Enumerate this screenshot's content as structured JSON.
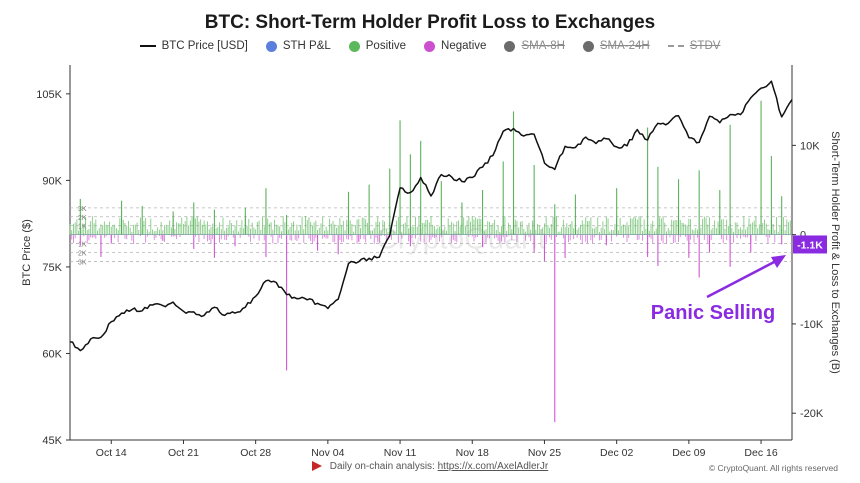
{
  "title": "BTC: Short-Term Holder Profit Loss to Exchanges",
  "legend": [
    {
      "label": "BTC Price [USD]",
      "kind": "line",
      "color": "#111111",
      "active": true
    },
    {
      "label": "STH P&L",
      "kind": "dot",
      "color": "#5b7fdc",
      "active": true
    },
    {
      "label": "Positive",
      "kind": "dot",
      "color": "#5cb85c",
      "active": true
    },
    {
      "label": "Negative",
      "kind": "dot",
      "color": "#cc4fd0",
      "active": true
    },
    {
      "label": "SMA-8H",
      "kind": "dot",
      "color": "#6b6b6b",
      "active": false
    },
    {
      "label": "SMA-24H",
      "kind": "dot",
      "color": "#6b6b6b",
      "active": false
    },
    {
      "label": "STDV",
      "kind": "dash",
      "color": "#9a9a9a",
      "active": false
    }
  ],
  "annotation": {
    "text": "Panic Selling",
    "color": "#8a2be2"
  },
  "latest_value_tag": {
    "text": "-1.1K",
    "color": "#8a2be2"
  },
  "watermark": "CryptoQuant",
  "footer": {
    "prefix": "Daily on-chain analysis:",
    "link": "https://x.com/AxelAdlerJr"
  },
  "copyright": "© CryptoQuant. All rights reserved",
  "chart_data": {
    "type": "line",
    "x_ticks": [
      "Oct 14",
      "Oct 21",
      "Oct 28",
      "Nov 04",
      "Nov 11",
      "Nov 18",
      "Nov 25",
      "Dec 02",
      "Dec 09",
      "Dec 16"
    ],
    "x_range": [
      "2024-10-10",
      "2024-12-19"
    ],
    "left_axis": {
      "label": "BTC Price ($)",
      "range": [
        45000,
        110000
      ],
      "ticks": [
        "45K",
        "60K",
        "75K",
        "90K",
        "105K"
      ]
    },
    "right_axis": {
      "label": "Short-Term Holder Profit & Loss to Exchanges (B)",
      "range": [
        -23000,
        19000
      ],
      "ticks": [
        "-20K",
        "-10K",
        "0",
        "10K"
      ]
    },
    "stdv_band_labels": [
      "3K",
      "2K",
      "1K",
      "1K",
      "2K",
      "3K"
    ],
    "series": [
      {
        "name": "BTC Price [USD]",
        "axis": "left",
        "color": "#111111",
        "points": [
          [
            "2024-10-10",
            62000
          ],
          [
            "2024-10-11",
            60500
          ],
          [
            "2024-10-12",
            62500
          ],
          [
            "2024-10-13",
            62800
          ],
          [
            "2024-10-14",
            65500
          ],
          [
            "2024-10-15",
            67000
          ],
          [
            "2024-10-16",
            67600
          ],
          [
            "2024-10-17",
            67400
          ],
          [
            "2024-10-18",
            68400
          ],
          [
            "2024-10-19",
            68300
          ],
          [
            "2024-10-20",
            68900
          ],
          [
            "2024-10-21",
            67300
          ],
          [
            "2024-10-22",
            67200
          ],
          [
            "2024-10-23",
            66600
          ],
          [
            "2024-10-24",
            68000
          ],
          [
            "2024-10-25",
            66600
          ],
          [
            "2024-10-26",
            67000
          ],
          [
            "2024-10-27",
            68000
          ],
          [
            "2024-10-28",
            69900
          ],
          [
            "2024-10-29",
            72600
          ],
          [
            "2024-10-30",
            72300
          ],
          [
            "2024-10-31",
            70200
          ],
          [
            "2024-11-01",
            69500
          ],
          [
            "2024-11-02",
            69300
          ],
          [
            "2024-11-03",
            68700
          ],
          [
            "2024-11-04",
            67800
          ],
          [
            "2024-11-05",
            69400
          ],
          [
            "2024-11-06",
            75600
          ],
          [
            "2024-11-07",
            75900
          ],
          [
            "2024-11-08",
            76500
          ],
          [
            "2024-11-09",
            76700
          ],
          [
            "2024-11-10",
            80400
          ],
          [
            "2024-11-11",
            88700
          ],
          [
            "2024-11-12",
            87900
          ],
          [
            "2024-11-13",
            90500
          ],
          [
            "2024-11-14",
            87300
          ],
          [
            "2024-11-15",
            91000
          ],
          [
            "2024-11-16",
            90600
          ],
          [
            "2024-11-17",
            89800
          ],
          [
            "2024-11-18",
            90500
          ],
          [
            "2024-11-19",
            92300
          ],
          [
            "2024-11-20",
            94300
          ],
          [
            "2024-11-21",
            98500
          ],
          [
            "2024-11-22",
            99000
          ],
          [
            "2024-11-23",
            97700
          ],
          [
            "2024-11-24",
            98000
          ],
          [
            "2024-11-25",
            93000
          ],
          [
            "2024-11-26",
            91900
          ],
          [
            "2024-11-27",
            95900
          ],
          [
            "2024-11-28",
            95700
          ],
          [
            "2024-11-29",
            97500
          ],
          [
            "2024-11-30",
            96400
          ],
          [
            "2024-12-01",
            97200
          ],
          [
            "2024-12-02",
            95800
          ],
          [
            "2024-12-03",
            96000
          ],
          [
            "2024-12-04",
            98800
          ],
          [
            "2024-12-05",
            97000
          ],
          [
            "2024-12-06",
            99900
          ],
          [
            "2024-12-07",
            99900
          ],
          [
            "2024-12-08",
            101200
          ],
          [
            "2024-12-09",
            97400
          ],
          [
            "2024-12-10",
            96600
          ],
          [
            "2024-12-11",
            101100
          ],
          [
            "2024-12-12",
            100000
          ],
          [
            "2024-12-13",
            101400
          ],
          [
            "2024-12-14",
            101400
          ],
          [
            "2024-12-15",
            104300
          ],
          [
            "2024-12-16",
            106000
          ],
          [
            "2024-12-17",
            107200
          ],
          [
            "2024-12-18",
            101000
          ],
          [
            "2024-12-19",
            104000
          ]
        ]
      }
    ],
    "spikes": {
      "positive": [
        [
          "2024-10-11",
          4000
        ],
        [
          "2024-10-15",
          3800
        ],
        [
          "2024-10-17",
          3200
        ],
        [
          "2024-10-20",
          2600
        ],
        [
          "2024-10-22",
          3600
        ],
        [
          "2024-10-24",
          2800
        ],
        [
          "2024-10-27",
          3000
        ],
        [
          "2024-10-29",
          5200
        ],
        [
          "2024-10-31",
          2200
        ],
        [
          "2024-11-06",
          4800
        ],
        [
          "2024-11-08",
          5600
        ],
        [
          "2024-11-10",
          7400
        ],
        [
          "2024-11-11",
          12800
        ],
        [
          "2024-11-12",
          9000
        ],
        [
          "2024-11-13",
          10500
        ],
        [
          "2024-11-15",
          6000
        ],
        [
          "2024-11-17",
          3600
        ],
        [
          "2024-11-19",
          5000
        ],
        [
          "2024-11-21",
          8200
        ],
        [
          "2024-11-22",
          13800
        ],
        [
          "2024-11-24",
          7800
        ],
        [
          "2024-11-26",
          3400
        ],
        [
          "2024-11-28",
          4500
        ],
        [
          "2024-12-02",
          5200
        ],
        [
          "2024-12-05",
          12000
        ],
        [
          "2024-12-06",
          7600
        ],
        [
          "2024-12-08",
          6200
        ],
        [
          "2024-12-10",
          7200
        ],
        [
          "2024-12-12",
          5000
        ],
        [
          "2024-12-13",
          12300
        ],
        [
          "2024-12-16",
          15000
        ],
        [
          "2024-12-17",
          8800
        ],
        [
          "2024-12-18",
          4300
        ]
      ],
      "negative": [
        [
          "2024-10-11",
          -1200
        ],
        [
          "2024-10-13",
          -2500
        ],
        [
          "2024-10-14",
          -1000
        ],
        [
          "2024-10-19",
          -700
        ],
        [
          "2024-10-22",
          -1600
        ],
        [
          "2024-10-24",
          -2600
        ],
        [
          "2024-10-26",
          -1300
        ],
        [
          "2024-10-29",
          -2500
        ],
        [
          "2024-10-31",
          -15200
        ],
        [
          "2024-11-03",
          -1800
        ],
        [
          "2024-11-05",
          -2200
        ],
        [
          "2024-11-07",
          -800
        ],
        [
          "2024-11-12",
          -1300
        ],
        [
          "2024-11-19",
          -1400
        ],
        [
          "2024-11-24",
          -2000
        ],
        [
          "2024-11-25",
          -3000
        ],
        [
          "2024-11-26",
          -21000
        ],
        [
          "2024-11-27",
          -2600
        ],
        [
          "2024-12-01",
          -1200
        ],
        [
          "2024-12-05",
          -2500
        ],
        [
          "2024-12-06",
          -3500
        ],
        [
          "2024-12-09",
          -2600
        ],
        [
          "2024-12-10",
          -4800
        ],
        [
          "2024-12-11",
          -2000
        ],
        [
          "2024-12-13",
          -3600
        ],
        [
          "2024-12-15",
          -2000
        ],
        [
          "2024-12-18",
          -1100
        ]
      ]
    }
  }
}
